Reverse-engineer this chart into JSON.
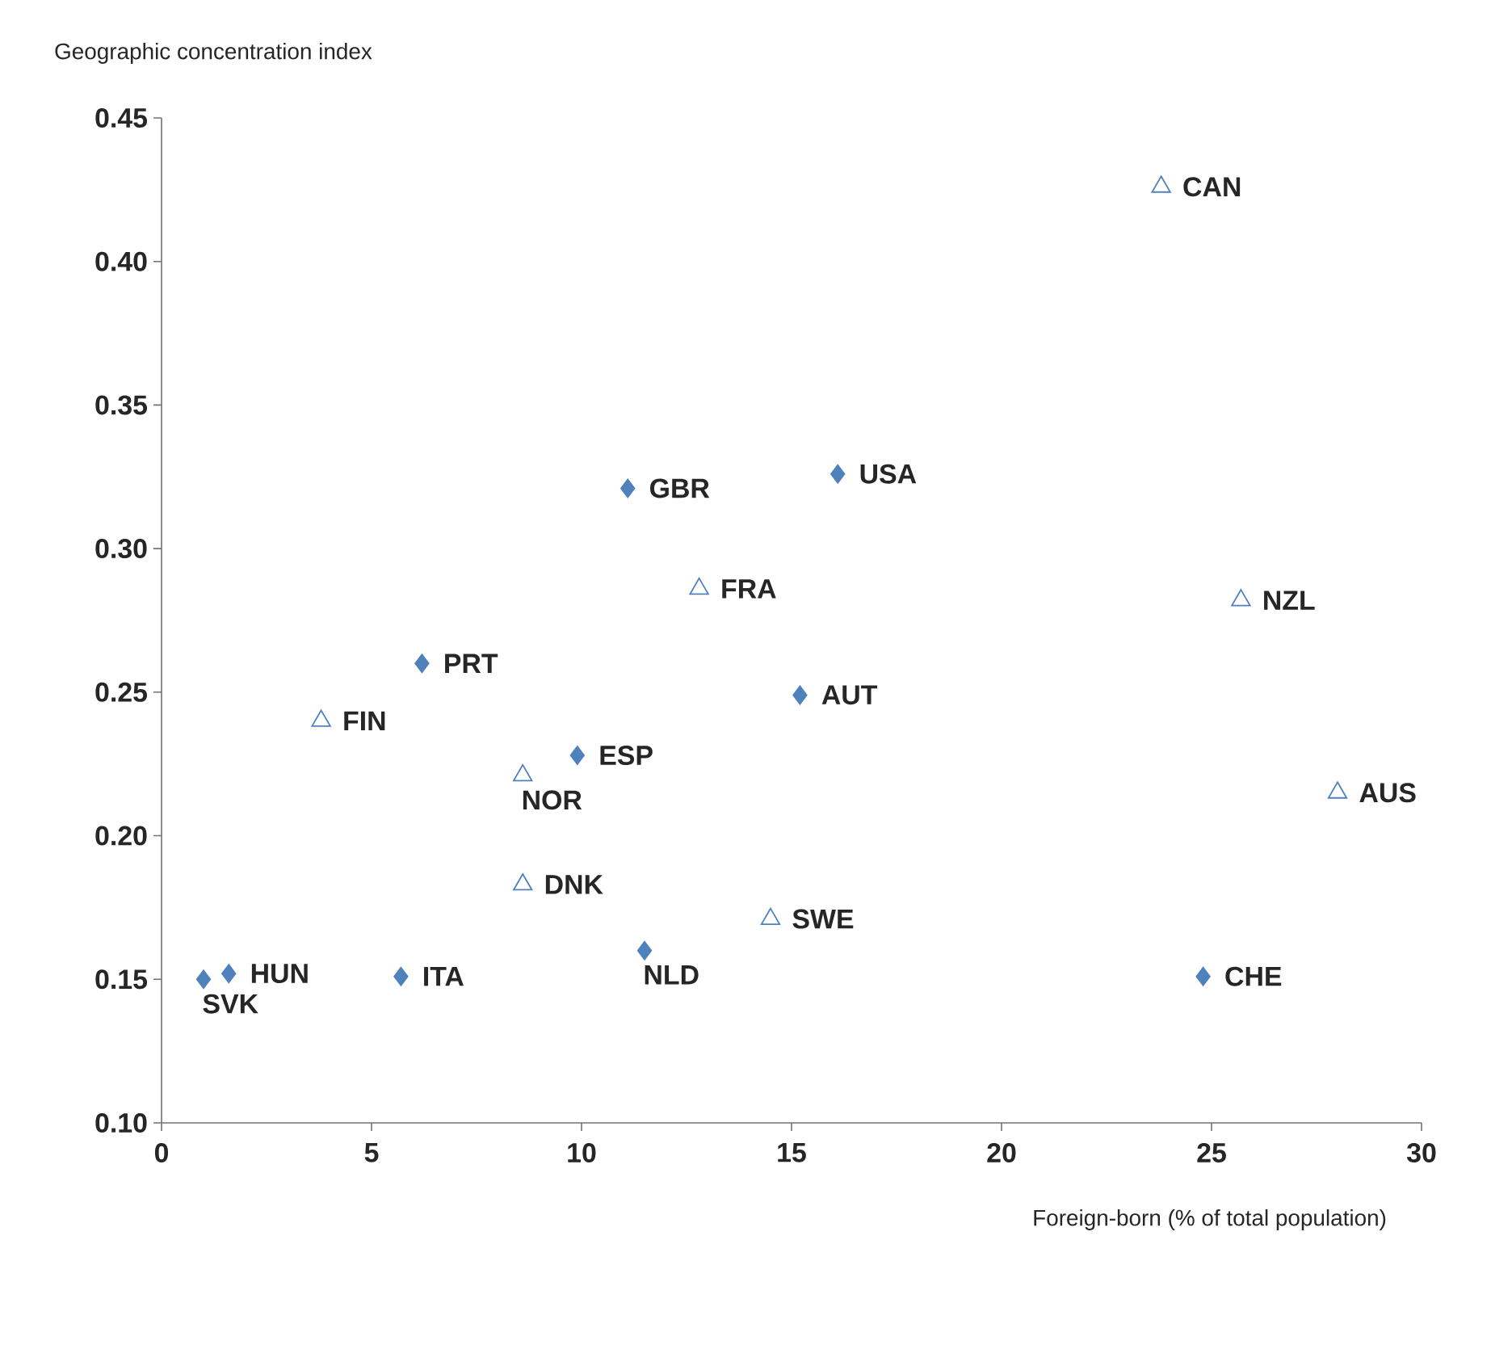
{
  "chart_data": {
    "type": "scatter",
    "xlabel": "Foreign-born (% of total population)",
    "ylabel": "Geographic concentration index",
    "xlim": [
      0,
      30
    ],
    "xticks": [
      0,
      5,
      10,
      15,
      20,
      25,
      30
    ],
    "ylim": [
      0.1,
      0.45
    ],
    "yticks": [
      {
        "value": 0.1,
        "label": "0.10"
      },
      {
        "value": 0.15,
        "label": "0.15"
      },
      {
        "value": 0.2,
        "label": "0.20"
      },
      {
        "value": 0.25,
        "label": "0.25"
      },
      {
        "value": 0.3,
        "label": "0.30"
      },
      {
        "value": 0.35,
        "label": "0.35"
      },
      {
        "value": 0.4,
        "label": "0.40"
      },
      {
        "value": 0.45,
        "label": "0.45"
      }
    ],
    "series": [
      {
        "marker": "diamond",
        "color": "#4f81bd",
        "x": [
          1.0,
          1.6,
          5.7,
          6.2,
          9.9,
          11.1,
          11.5,
          16.1,
          15.2,
          24.8
        ],
        "values": [
          0.15,
          0.152,
          0.151,
          0.26,
          0.228,
          0.321,
          0.16,
          0.326,
          0.249,
          0.151
        ]
      },
      {
        "marker": "triangle",
        "color": "#4f81bd",
        "x": [
          3.8,
          8.6,
          8.6,
          12.8,
          14.5,
          23.8,
          25.7,
          28.0
        ],
        "values": [
          0.24,
          0.221,
          0.183,
          0.286,
          0.171,
          0.426,
          0.282,
          0.215
        ]
      }
    ],
    "annotations": [
      {
        "text": "SVK",
        "x": 1.0,
        "y": 0.15
      },
      {
        "text": "HUN",
        "x": 1.6,
        "y": 0.152
      },
      {
        "text": "ITA",
        "x": 5.7,
        "y": 0.151
      },
      {
        "text": "PRT",
        "x": 6.2,
        "y": 0.26
      },
      {
        "text": "ESP",
        "x": 9.9,
        "y": 0.228
      },
      {
        "text": "GBR",
        "x": 11.1,
        "y": 0.321
      },
      {
        "text": "NLD",
        "x": 11.5,
        "y": 0.16
      },
      {
        "text": "USA",
        "x": 16.1,
        "y": 0.326
      },
      {
        "text": "AUT",
        "x": 15.2,
        "y": 0.249
      },
      {
        "text": "CHE",
        "x": 24.8,
        "y": 0.151
      },
      {
        "text": "FIN",
        "x": 3.8,
        "y": 0.24
      },
      {
        "text": "NOR",
        "x": 8.6,
        "y": 0.221
      },
      {
        "text": "DNK",
        "x": 8.6,
        "y": 0.183
      },
      {
        "text": "FRA",
        "x": 12.8,
        "y": 0.286
      },
      {
        "text": "SWE",
        "x": 14.5,
        "y": 0.171
      },
      {
        "text": "CAN",
        "x": 23.8,
        "y": 0.426
      },
      {
        "text": "NZL",
        "x": 25.7,
        "y": 0.282
      },
      {
        "text": "AUS",
        "x": 28.0,
        "y": 0.215
      }
    ]
  }
}
